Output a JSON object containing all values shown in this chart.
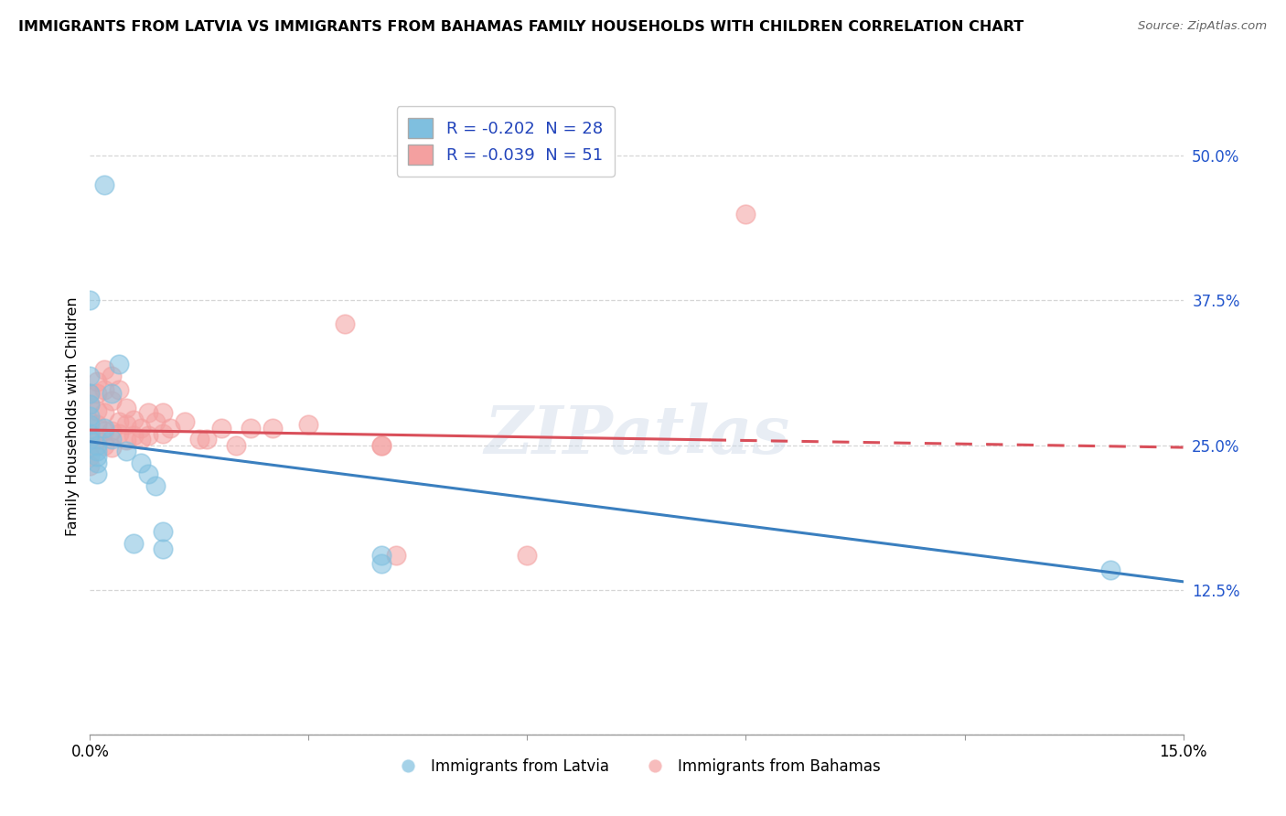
{
  "title": "IMMIGRANTS FROM LATVIA VS IMMIGRANTS FROM BAHAMAS FAMILY HOUSEHOLDS WITH CHILDREN CORRELATION CHART",
  "source": "Source: ZipAtlas.com",
  "ylabel": "Family Households with Children",
  "xlim": [
    0.0,
    0.15
  ],
  "ylim": [
    0.0,
    0.55
  ],
  "yticks": [
    0.0,
    0.125,
    0.25,
    0.375,
    0.5
  ],
  "ytick_labels": [
    "",
    "12.5%",
    "25.0%",
    "37.5%",
    "50.0%"
  ],
  "xticks": [
    0.0,
    0.03,
    0.06,
    0.09,
    0.12,
    0.15
  ],
  "xtick_labels": [
    "0.0%",
    "",
    "",
    "",
    "",
    "15.0%"
  ],
  "legend_r_latvia": "-0.202",
  "legend_n_latvia": "28",
  "legend_r_bahamas": "-0.039",
  "legend_n_bahamas": "51",
  "blue_color": "#7fbfdf",
  "pink_color": "#f4a0a0",
  "blue_line_color": "#3a7fbf",
  "pink_line_color": "#d94f5a",
  "watermark": "ZIPatlas",
  "blue_line": [
    [
      0.0,
      0.253
    ],
    [
      0.15,
      0.132
    ]
  ],
  "pink_line": [
    [
      0.0,
      0.263
    ],
    [
      0.15,
      0.248
    ]
  ],
  "latvia_points": [
    [
      0.002,
      0.475
    ],
    [
      0.0,
      0.375
    ],
    [
      0.0,
      0.31
    ],
    [
      0.0,
      0.295
    ],
    [
      0.0,
      0.285
    ],
    [
      0.0,
      0.275
    ],
    [
      0.0,
      0.268
    ],
    [
      0.0,
      0.26
    ],
    [
      0.0,
      0.255
    ],
    [
      0.001,
      0.25
    ],
    [
      0.001,
      0.245
    ],
    [
      0.001,
      0.24
    ],
    [
      0.001,
      0.235
    ],
    [
      0.001,
      0.225
    ],
    [
      0.002,
      0.265
    ],
    [
      0.003,
      0.295
    ],
    [
      0.003,
      0.255
    ],
    [
      0.004,
      0.32
    ],
    [
      0.005,
      0.245
    ],
    [
      0.006,
      0.165
    ],
    [
      0.007,
      0.235
    ],
    [
      0.008,
      0.225
    ],
    [
      0.009,
      0.215
    ],
    [
      0.01,
      0.175
    ],
    [
      0.01,
      0.16
    ],
    [
      0.04,
      0.155
    ],
    [
      0.04,
      0.148
    ],
    [
      0.14,
      0.142
    ]
  ],
  "bahamas_points": [
    [
      0.0,
      0.295
    ],
    [
      0.0,
      0.285
    ],
    [
      0.0,
      0.27
    ],
    [
      0.0,
      0.258
    ],
    [
      0.0,
      0.248
    ],
    [
      0.0,
      0.24
    ],
    [
      0.0,
      0.232
    ],
    [
      0.001,
      0.305
    ],
    [
      0.001,
      0.295
    ],
    [
      0.001,
      0.28
    ],
    [
      0.001,
      0.268
    ],
    [
      0.001,
      0.255
    ],
    [
      0.002,
      0.315
    ],
    [
      0.002,
      0.298
    ],
    [
      0.002,
      0.278
    ],
    [
      0.002,
      0.262
    ],
    [
      0.002,
      0.25
    ],
    [
      0.003,
      0.31
    ],
    [
      0.003,
      0.288
    ],
    [
      0.003,
      0.262
    ],
    [
      0.003,
      0.248
    ],
    [
      0.004,
      0.298
    ],
    [
      0.004,
      0.27
    ],
    [
      0.004,
      0.26
    ],
    [
      0.005,
      0.282
    ],
    [
      0.005,
      0.268
    ],
    [
      0.005,
      0.254
    ],
    [
      0.006,
      0.272
    ],
    [
      0.006,
      0.258
    ],
    [
      0.007,
      0.265
    ],
    [
      0.007,
      0.255
    ],
    [
      0.008,
      0.278
    ],
    [
      0.008,
      0.258
    ],
    [
      0.009,
      0.27
    ],
    [
      0.01,
      0.278
    ],
    [
      0.01,
      0.26
    ],
    [
      0.011,
      0.265
    ],
    [
      0.013,
      0.27
    ],
    [
      0.015,
      0.255
    ],
    [
      0.016,
      0.255
    ],
    [
      0.018,
      0.265
    ],
    [
      0.02,
      0.25
    ],
    [
      0.022,
      0.265
    ],
    [
      0.025,
      0.265
    ],
    [
      0.03,
      0.268
    ],
    [
      0.035,
      0.355
    ],
    [
      0.04,
      0.25
    ],
    [
      0.04,
      0.25
    ],
    [
      0.042,
      0.155
    ],
    [
      0.06,
      0.155
    ],
    [
      0.09,
      0.45
    ]
  ]
}
